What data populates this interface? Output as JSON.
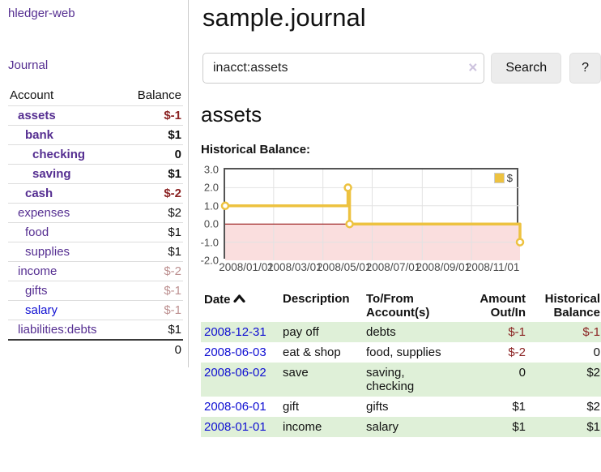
{
  "colors": {
    "purple": "#552e91",
    "link_blue": "#0f0fd2",
    "neg_strong": "#8b2323",
    "neg_soft": "#bc8f8f",
    "stripe_green": "#dff0d8",
    "series_gold": "#edc240",
    "pink_region": "#fadede",
    "zero_line": "#8b0000",
    "chart_border": "#545454",
    "grid_line": "#e2e2e2",
    "tick_text": "#4a4a4a"
  },
  "app": {
    "title": "hledger-web"
  },
  "sidebar": {
    "journal_label": "Journal",
    "table": {
      "account_header": "Account",
      "balance_header": "Balance",
      "rows": [
        {
          "name": "assets",
          "balance": "$-1",
          "indent": 1,
          "bold": true,
          "balance_class": "neg",
          "link_class": ""
        },
        {
          "name": "bank",
          "balance": "$1",
          "indent": 2,
          "bold": true,
          "balance_class": "pos",
          "link_class": ""
        },
        {
          "name": "checking",
          "balance": "0",
          "indent": 3,
          "bold": true,
          "balance_class": "pos",
          "link_class": ""
        },
        {
          "name": "saving",
          "balance": "$1",
          "indent": 3,
          "bold": true,
          "balance_class": "pos",
          "link_class": ""
        },
        {
          "name": "cash",
          "balance": "$-2",
          "indent": 2,
          "bold": true,
          "balance_class": "neg",
          "link_class": ""
        },
        {
          "name": "expenses",
          "balance": "$2",
          "indent": 1,
          "bold": false,
          "balance_class": "pos",
          "link_class": ""
        },
        {
          "name": "food",
          "balance": "$1",
          "indent": 2,
          "bold": false,
          "balance_class": "pos",
          "link_class": ""
        },
        {
          "name": "supplies",
          "balance": "$1",
          "indent": 2,
          "bold": false,
          "balance_class": "pos",
          "link_class": ""
        },
        {
          "name": "income",
          "balance": "$-2",
          "indent": 1,
          "bold": false,
          "balance_class": "negsoft",
          "link_class": ""
        },
        {
          "name": "gifts",
          "balance": "$-1",
          "indent": 2,
          "bold": false,
          "balance_class": "negsoft",
          "link_class": ""
        },
        {
          "name": "salary",
          "balance": "$-1",
          "indent": 2,
          "bold": false,
          "balance_class": "negsoft",
          "link_class": "blue"
        },
        {
          "name": "liabilities:debts",
          "balance": "$1",
          "indent": 1,
          "bold": false,
          "balance_class": "pos",
          "link_class": ""
        }
      ],
      "total": "0"
    }
  },
  "main": {
    "title": "sample.journal",
    "search": {
      "value": "inacct:assets",
      "clear_icon": "×",
      "button_label": "Search",
      "help_label": "?"
    },
    "account_heading": "assets",
    "chart_label": "Historical Balance:"
  },
  "chart_data": {
    "type": "line",
    "step": true,
    "series_label": "$",
    "points": [
      [
        "2008-01-01",
        1.0
      ],
      [
        "2008-06-01",
        2.0
      ],
      [
        "2008-06-03",
        0.0
      ],
      [
        "2008-12-31",
        -1.0
      ]
    ],
    "xlim": [
      "2008-01-01",
      "2008-12-31"
    ],
    "ylim": [
      -2.0,
      3.0
    ],
    "yticks": [
      3.0,
      2.0,
      1.0,
      0.0,
      -1.0,
      -2.0
    ],
    "xticks": [
      {
        "date": "2008-01-01",
        "label": "2008/01/01"
      },
      {
        "date": "2008-03-01",
        "label": "2008/03/01"
      },
      {
        "date": "2008-05-01",
        "label": "2008/05/01"
      },
      {
        "date": "2008-07-01",
        "label": "2008/07/01"
      },
      {
        "date": "2008-09-01",
        "label": "2008/09/01"
      },
      {
        "date": "2008-11-01",
        "label": "2008/11/01"
      }
    ],
    "legend_position": "top-right",
    "negative_region_shaded": true
  },
  "register": {
    "headers": {
      "date": "Date",
      "description": "Description",
      "accounts": "To/From\nAccount(s)",
      "amount": "Amount\nOut/In",
      "balance": "Historical\nBalance"
    },
    "rows": [
      {
        "date": "2008-12-31",
        "description": "pay off",
        "accounts": "debts",
        "amount": "$-1",
        "amount_class": "neg",
        "balance": "$-1",
        "balance_class": "neg"
      },
      {
        "date": "2008-06-03",
        "description": "eat & shop",
        "accounts": "food, supplies",
        "amount": "$-2",
        "amount_class": "neg",
        "balance": "0",
        "balance_class": "pos"
      },
      {
        "date": "2008-06-02",
        "description": "save",
        "accounts": "saving,\nchecking",
        "amount": "0",
        "amount_class": "pos",
        "balance": "$2",
        "balance_class": "pos"
      },
      {
        "date": "2008-06-01",
        "description": "gift",
        "accounts": "gifts",
        "amount": "$1",
        "amount_class": "pos",
        "balance": "$2",
        "balance_class": "pos"
      },
      {
        "date": "2008-01-01",
        "description": "income",
        "accounts": "salary",
        "amount": "$1",
        "amount_class": "pos",
        "balance": "$1",
        "balance_class": "pos"
      }
    ]
  }
}
